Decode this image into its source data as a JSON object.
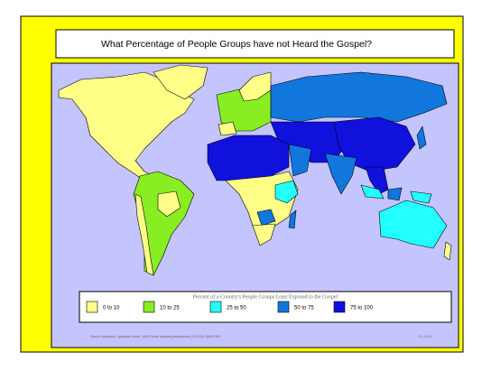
{
  "title": "What Percentage of People Groups have not Heard the Gospel?",
  "legend": {
    "title": "Percent of a Country's People Groups Least Exposed to the Gospel",
    "items": [
      {
        "label": "0 to 10",
        "color": "#ffff88"
      },
      {
        "label": "10 to 25",
        "color": "#88ee22"
      },
      {
        "label": "25 to 50",
        "color": "#22ffff"
      },
      {
        "label": "50 to 75",
        "color": "#1177dd"
      },
      {
        "label": "75 to 100",
        "color": "#1111dd"
      }
    ]
  },
  "footer": {
    "left": "Patrick Johnstone, Operation World, 1993    Global Mapping International (719) 531-3599   1994",
    "right": "GL-1-010"
  }
}
